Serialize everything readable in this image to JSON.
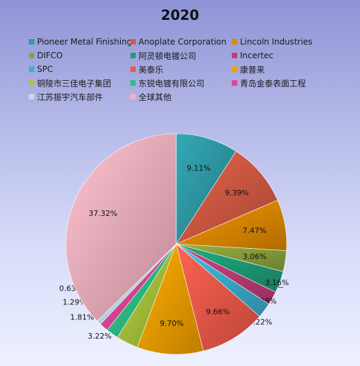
{
  "chart_data": {
    "type": "pie",
    "title": "2020",
    "legend_position": "top",
    "categories": [
      "Pioneer Metal Finishing",
      "Anoplate Corporation",
      "Lincoln Industries",
      "DIFCO",
      "阿灵顿电镀公司",
      "Incertec",
      "SPC",
      "美泰乐",
      "康普来",
      "铜陵市三佳电子集团",
      "东锐电镀有限公司",
      "青岛金泰表面工程",
      "江苏振宇汽车部件",
      "全球其他"
    ],
    "values": [
      9.11,
      9.39,
      7.47,
      3.06,
      3.16,
      1.98,
      2.22,
      9.66,
      9.7,
      3.22,
      1.81,
      1.29,
      0.63,
      37.32
    ],
    "labels": [
      "9.11%",
      "9.39%",
      "7.47%",
      "3.06%",
      "3.16%",
      "1.98%",
      "2.22%",
      "9.66%",
      "9.70%",
      "3.22%",
      "1.81%",
      "1.29%",
      "0.63%",
      "37.32%"
    ],
    "colors": [
      "#2e9aa6",
      "#d25a43",
      "#e08a00",
      "#8ba33a",
      "#1f9e78",
      "#c23c7a",
      "#3ab0cf",
      "#ef5a4a",
      "#f3a000",
      "#a8c43a",
      "#2dbf86",
      "#e0479a",
      "#b8e0ec",
      "#f2b1bf"
    ]
  }
}
